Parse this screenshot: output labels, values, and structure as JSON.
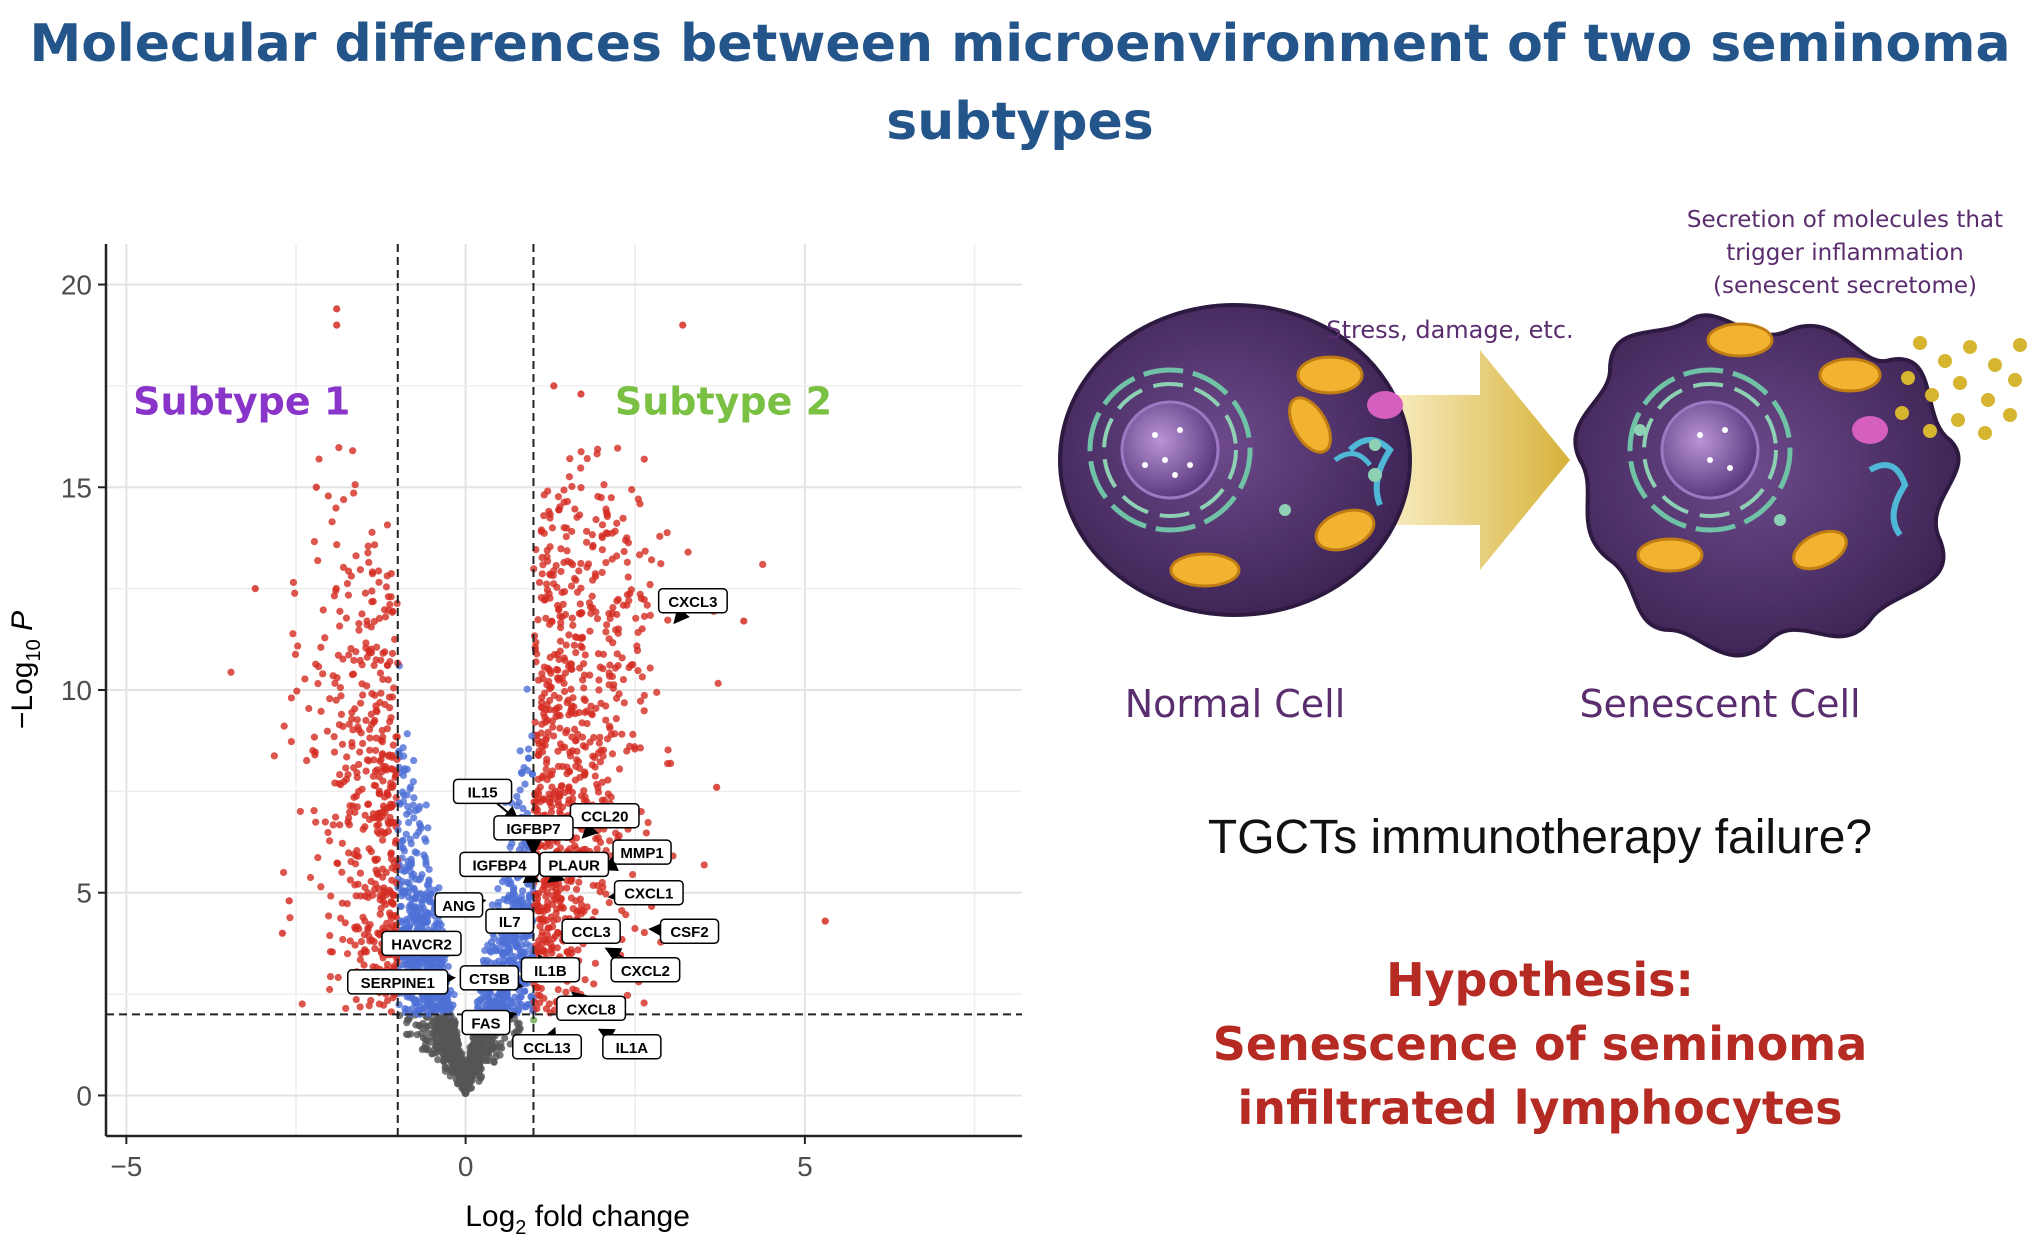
{
  "title": {
    "line1": "Molecular differences between microenvironment of two seminoma",
    "line2": "subtypes"
  },
  "chart_data": {
    "type": "scatter",
    "subtype": "volcano",
    "xlabel_main": "Log",
    "xlabel_sub": "2",
    "xlabel_rest": " fold change",
    "ylabel_main": "−Log",
    "ylabel_sub": "10",
    "ylabel_rest": " P",
    "xlim": [
      -5.3,
      8.2
    ],
    "ylim": [
      -1,
      21
    ],
    "x_ticks": [
      -5,
      0,
      5
    ],
    "x_tick_labels": [
      "−5",
      "0",
      "5"
    ],
    "y_ticks": [
      0,
      5,
      10,
      15,
      20
    ],
    "y_tick_labels": [
      "0",
      "5",
      "10",
      "15",
      "20"
    ],
    "fc_cutoff": 1,
    "p_cutoff": 2,
    "group_labels": [
      {
        "text": "Subtype 1",
        "x": -3.3,
        "y": 16.8,
        "color": "#8a35c9"
      },
      {
        "text": "Subtype 2",
        "x": 3.8,
        "y": 16.8,
        "color": "#7ac143"
      }
    ],
    "point_colors": {
      "ns": "#555555",
      "fc_only": "#6ea84f",
      "p_only": "#4d6fd6",
      "both": "#d42c22"
    },
    "highlight_points": [
      {
        "x": -1.9,
        "y": 19.4
      },
      {
        "x": -1.9,
        "y": 19.0
      },
      {
        "x": 3.2,
        "y": 19.0
      },
      {
        "x": 1.3,
        "y": 17.5
      },
      {
        "x": 1.7,
        "y": 17.3
      },
      {
        "x": -3.1,
        "y": 12.5
      },
      {
        "x": 4.1,
        "y": 11.7
      },
      {
        "x": 5.3,
        "y": 4.3
      },
      {
        "x": 3.7,
        "y": 7.6
      },
      {
        "x": -2.2,
        "y": 15.0
      },
      {
        "x": -2.6,
        "y": 4.8
      },
      {
        "x": -2.7,
        "y": 4.0
      }
    ],
    "gene_labels": [
      {
        "gene": "CXCL3",
        "x": 3.35,
        "y": 12.2,
        "px": 3.1,
        "py": 11.7
      },
      {
        "gene": "IL15",
        "x": 0.25,
        "y": 7.5,
        "px": 0.75,
        "py": 6.8
      },
      {
        "gene": "CCL20",
        "x": 2.05,
        "y": 6.9,
        "px": 1.75,
        "py": 6.4
      },
      {
        "gene": "IGFBP7",
        "x": 1.0,
        "y": 6.6,
        "px": 1.0,
        "py": 6.0
      },
      {
        "gene": "MMP1",
        "x": 2.6,
        "y": 6.0,
        "px": 2.05,
        "py": 5.6
      },
      {
        "gene": "IGFBP4",
        "x": 0.5,
        "y": 5.7,
        "px": 1.05,
        "py": 5.3
      },
      {
        "gene": "PLAUR",
        "x": 1.6,
        "y": 5.7,
        "px": 1.25,
        "py": 5.3
      },
      {
        "gene": "CXCL1",
        "x": 2.7,
        "y": 5.0,
        "px": 2.15,
        "py": 4.9
      },
      {
        "gene": "ANG",
        "x": -0.1,
        "y": 4.7,
        "px": 0.25,
        "py": 4.8
      },
      {
        "gene": "IL7",
        "x": 0.65,
        "y": 4.3,
        "px": 0.95,
        "py": 4.3
      },
      {
        "gene": "CCL3",
        "x": 1.85,
        "y": 4.05,
        "px": 1.5,
        "py": 4.2
      },
      {
        "gene": "CSF2",
        "x": 3.3,
        "y": 4.05,
        "px": 2.75,
        "py": 4.1
      },
      {
        "gene": "HAVCR2",
        "x": -0.65,
        "y": 3.75,
        "px": -0.35,
        "py": 3.8
      },
      {
        "gene": "IL1B",
        "x": 1.25,
        "y": 3.1,
        "px": 1.1,
        "py": 3.4
      },
      {
        "gene": "CXCL2",
        "x": 2.65,
        "y": 3.1,
        "px": 2.1,
        "py": 3.6
      },
      {
        "gene": "SERPINE1",
        "x": -1.0,
        "y": 2.8,
        "px": -0.2,
        "py": 2.9
      },
      {
        "gene": "CTSB",
        "x": 0.35,
        "y": 2.9,
        "px": 0.8,
        "py": 2.7
      },
      {
        "gene": "CXCL8",
        "x": 1.85,
        "y": 2.15,
        "px": 1.6,
        "py": 2.5
      },
      {
        "gene": "FAS",
        "x": 0.3,
        "y": 1.8,
        "px": 0.7,
        "py": 2.0
      },
      {
        "gene": "CCL13",
        "x": 1.2,
        "y": 1.2,
        "px": 1.3,
        "py": 1.6
      },
      {
        "gene": "IL1A",
        "x": 2.45,
        "y": 1.2,
        "px": 2.0,
        "py": 1.6
      }
    ]
  },
  "diagram": {
    "arrow_label": "Stress, damage, etc.",
    "secretome_line1": "Secretion of molecules that",
    "secretome_line2": "trigger inflammation",
    "secretome_line3": "(senescent secretome)",
    "normal_label": "Normal Cell",
    "senescent_label": "Senescent Cell",
    "text_color": "#5a2d6e"
  },
  "question": "TGCTs immunotherapy failure?",
  "hypothesis": {
    "line1": "Hypothesis:",
    "line2": "Senescence of seminoma",
    "line3": "infiltrated lymphocytes"
  }
}
